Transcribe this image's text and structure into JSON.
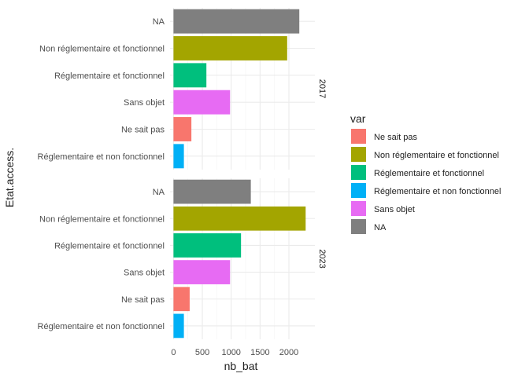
{
  "chart_data": {
    "type": "bar",
    "orientation": "horizontal",
    "xlabel": "nb_bat",
    "ylabel": "Etat.access.",
    "xlim": [
      -60,
      2450
    ],
    "x_ticks": [
      0,
      500,
      1000,
      1500,
      2000
    ],
    "x_tick_labels": [
      "0",
      "500",
      "1000",
      "1500",
      "2000"
    ],
    "grid": true,
    "categories": [
      "NA",
      "Non réglementaire et fonctionnel",
      "Réglementaire et fonctionnel",
      "Sans objet",
      "Ne sait pas",
      "Réglementaire et non fonctionnel"
    ],
    "category_colors": {
      "NA": "#7f7f7f",
      "Non réglementaire et fonctionnel": "#a3a500",
      "Réglementaire et fonctionnel": "#00bf7d",
      "Sans objet": "#e76bf3",
      "Ne sait pas": "#f8766d",
      "Réglementaire et non fonctionnel": "#00b0f6"
    },
    "facets": [
      {
        "label": "2017",
        "values": {
          "NA": 2180,
          "Non réglementaire et fonctionnel": 1970,
          "Réglementaire et fonctionnel": 570,
          "Sans objet": 980,
          "Ne sait pas": 310,
          "Réglementaire et non fonctionnel": 180
        }
      },
      {
        "label": "2023",
        "values": {
          "NA": 1340,
          "Non réglementaire et fonctionnel": 2290,
          "Réglementaire et fonctionnel": 1170,
          "Sans objet": 980,
          "Ne sait pas": 280,
          "Réglementaire et non fonctionnel": 180
        }
      }
    ],
    "legend": {
      "title": "var",
      "position": "right",
      "items": [
        "Ne sait pas",
        "Non réglementaire et fonctionnel",
        "Réglementaire et fonctionnel",
        "Réglementaire et non fonctionnel",
        "Sans objet",
        "NA"
      ]
    }
  }
}
